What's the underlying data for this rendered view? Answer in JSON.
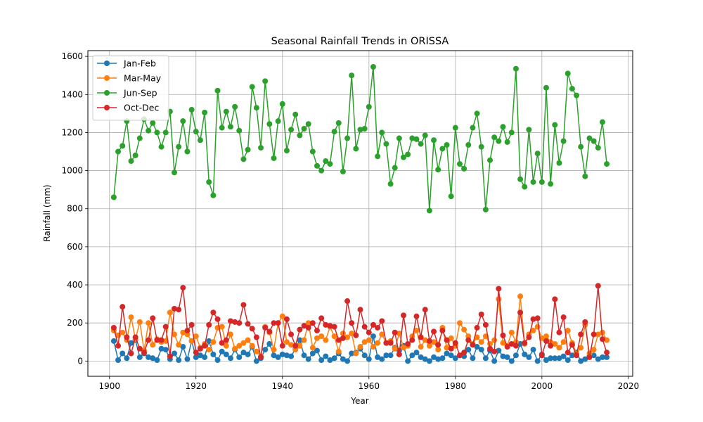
{
  "chart_data": {
    "type": "line",
    "title": "Seasonal Rainfall Trends in ORISSA",
    "xlabel": "Year",
    "ylabel": "Rainfall (mm)",
    "xlim": [
      1895,
      2021
    ],
    "ylim": [
      -80,
      1630
    ],
    "xticks": [
      1900,
      1920,
      1940,
      1960,
      1980,
      2000,
      2020
    ],
    "yticks": [
      0,
      200,
      400,
      600,
      800,
      1000,
      1200,
      1400,
      1600
    ],
    "grid": true,
    "legend_position": "top-left",
    "x_start": 1901,
    "series": [
      {
        "name": "Jan-Feb",
        "color": "#1f77b4",
        "values": [
          105,
          5,
          40,
          15,
          95,
          110,
          20,
          40,
          20,
          15,
          5,
          65,
          60,
          10,
          40,
          5,
          75,
          10,
          105,
          20,
          30,
          20,
          105,
          35,
          5,
          50,
          35,
          15,
          60,
          20,
          45,
          35,
          75,
          0,
          15,
          60,
          90,
          30,
          20,
          35,
          30,
          25,
          65,
          110,
          30,
          10,
          40,
          55,
          5,
          25,
          5,
          15,
          40,
          10,
          0,
          40,
          45,
          65,
          30,
          10,
          130,
          20,
          10,
          30,
          30,
          70,
          55,
          80,
          0,
          30,
          45,
          20,
          10,
          0,
          20,
          10,
          15,
          40,
          30,
          15,
          30,
          25,
          60,
          15,
          75,
          60,
          15,
          55,
          0,
          55,
          25,
          20,
          0,
          30,
          90,
          35,
          20,
          60,
          0,
          35,
          5,
          15,
          15,
          15,
          25,
          5,
          30,
          45,
          0,
          10,
          25,
          30,
          10,
          20,
          20
        ]
      },
      {
        "name": "Mar-May",
        "color": "#ff7f0e",
        "values": [
          160,
          135,
          150,
          110,
          230,
          115,
          205,
          55,
          200,
          85,
          115,
          100,
          105,
          255,
          140,
          85,
          150,
          140,
          105,
          130,
          70,
          90,
          60,
          100,
          175,
          180,
          80,
          140,
          65,
          80,
          95,
          110,
          80,
          50,
          25,
          180,
          150,
          60,
          200,
          235,
          100,
          85,
          60,
          80,
          110,
          200,
          70,
          120,
          130,
          110,
          180,
          130,
          50,
          145,
          125,
          145,
          40,
          75,
          100,
          110,
          75,
          95,
          140,
          95,
          105,
          65,
          145,
          70,
          80,
          130,
          160,
          75,
          110,
          80,
          100,
          60,
          175,
          70,
          120,
          80,
          200,
          165,
          130,
          90,
          125,
          100,
          130,
          90,
          110,
          325,
          95,
          80,
          150,
          100,
          340,
          90,
          140,
          160,
          180,
          120,
          130,
          100,
          90,
          70,
          100,
          160,
          95,
          40,
          70,
          190,
          40,
          60,
          140,
          150,
          110
        ]
      },
      {
        "name": "Jun-Sep",
        "color": "#2ca02c",
        "values": [
          860,
          1100,
          1130,
          1260,
          1050,
          1080,
          1170,
          1270,
          1210,
          1250,
          1200,
          1125,
          1200,
          1310,
          990,
          1125,
          1260,
          1100,
          1320,
          1205,
          1160,
          1305,
          940,
          870,
          1420,
          1225,
          1310,
          1230,
          1335,
          1210,
          1060,
          1110,
          1440,
          1330,
          1120,
          1470,
          1245,
          1065,
          1260,
          1350,
          1105,
          1215,
          1295,
          1185,
          1220,
          1245,
          1100,
          1025,
          1000,
          1050,
          1035,
          1205,
          1250,
          995,
          1170,
          1500,
          1115,
          1215,
          1220,
          1335,
          1545,
          1075,
          1200,
          1140,
          930,
          1015,
          1170,
          1070,
          1085,
          1170,
          1165,
          1140,
          1185,
          790,
          1160,
          1005,
          1115,
          1135,
          865,
          1225,
          1035,
          1010,
          1135,
          1225,
          1300,
          1125,
          795,
          1055,
          1175,
          1155,
          1230,
          1150,
          1200,
          1535,
          955,
          915,
          1215,
          940,
          1090,
          940,
          1435,
          930,
          1240,
          1040,
          1155,
          1510,
          1430,
          1395,
          1125,
          970,
          1170,
          1155,
          1120,
          1255,
          1035
        ]
      },
      {
        "name": "Oct-Dec",
        "color": "#d62728",
        "values": [
          175,
          80,
          285,
          125,
          40,
          125,
          65,
          45,
          110,
          225,
          110,
          110,
          180,
          25,
          275,
          270,
          385,
          160,
          190,
          45,
          65,
          80,
          190,
          255,
          220,
          95,
          110,
          210,
          205,
          200,
          295,
          195,
          170,
          125,
          20,
          175,
          155,
          200,
          200,
          80,
          220,
          140,
          80,
          165,
          185,
          175,
          200,
          160,
          225,
          190,
          185,
          180,
          110,
          120,
          315,
          200,
          135,
          270,
          180,
          150,
          190,
          175,
          210,
          95,
          95,
          150,
          35,
          240,
          90,
          110,
          235,
          125,
          270,
          105,
          155,
          85,
          160,
          110,
          65,
          95,
          30,
          45,
          110,
          85,
          175,
          245,
          190,
          65,
          50,
          380,
          135,
          75,
          90,
          80,
          255,
          95,
          125,
          220,
          225,
          30,
          105,
          80,
          325,
          150,
          230,
          45,
          85,
          30,
          140,
          205,
          20,
          140,
          395,
          115,
          45
        ]
      }
    ]
  }
}
